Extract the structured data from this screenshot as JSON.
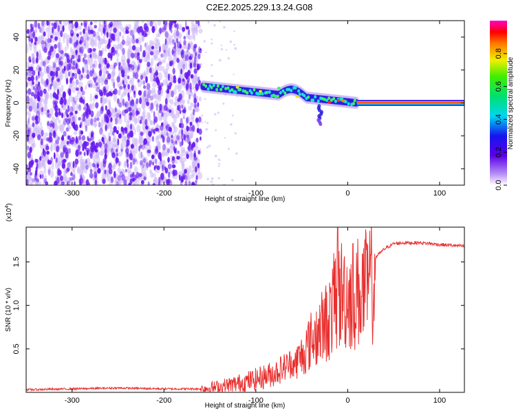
{
  "title": "C2E2.2025.229.13.24.G08",
  "colors": {
    "snr_line": "#e8302f",
    "noise_dots": "#6a1cf0",
    "noise_light": "#cdb8f7"
  },
  "chart_data": [
    {
      "type": "heatmap",
      "xlabel": "Height of straight line (km)",
      "ylabel": "Frequency (Hz)",
      "xlim": [
        -350,
        127
      ],
      "ylim": [
        -50,
        50
      ],
      "x_ticks": [
        -300,
        -200,
        -100,
        0,
        100
      ],
      "x_tick_labels": [
        "-300",
        "-200",
        "-100",
        "0",
        "100"
      ],
      "y_ticks": [
        -40,
        -20,
        0,
        20,
        40
      ],
      "y_tick_labels": [
        "-40",
        "-20",
        "0",
        "20",
        "40"
      ],
      "colorbar": {
        "label": "Normalized spectral amplitude",
        "range": [
          0,
          1
        ],
        "ticks": [
          0.0,
          0.2,
          0.4,
          0.6,
          0.8
        ],
        "tick_labels": [
          "0.0",
          "0.2",
          "0.4",
          "0.6",
          "0.8"
        ],
        "colormap": "rainbow (white, purple, blue, cyan, green, yellow, orange, red, magenta)"
      },
      "features": {
        "noise_region_x": [
          -350,
          -160
        ],
        "signal_band_x": [
          -160,
          127
        ],
        "carrier_frequency_hz": 0,
        "carrier_x": [
          10,
          127
        ]
      },
      "grid": false
    },
    {
      "type": "line",
      "xlabel": "Height of straight line (km)",
      "ylabel": "SNR (10 * v/v)",
      "y_multiplier_label": "(x10",
      "y_multiplier_exp": "4",
      "y_multiplier_close": ")",
      "xlim": [
        -350,
        127
      ],
      "ylim": [
        0.0,
        1.9
      ],
      "x_ticks": [
        -300,
        -200,
        -100,
        0,
        100
      ],
      "x_tick_labels": [
        "-300",
        "-200",
        "-100",
        "0",
        "100"
      ],
      "y_ticks": [
        0.5,
        1.0,
        1.5
      ],
      "y_tick_labels": [
        "0.5",
        "1.0",
        "1.5"
      ],
      "series": [
        {
          "color": "#e8302f",
          "x": [
            -350,
            -300,
            -250,
            -200,
            -160,
            -140,
            -120,
            -100,
            -80,
            -60,
            -50,
            -40,
            -30,
            -20,
            -15,
            -10,
            -5,
            0,
            10,
            20,
            30,
            40,
            50,
            60,
            80,
            100,
            127
          ],
          "y": [
            0.03,
            0.04,
            0.05,
            0.04,
            0.04,
            0.06,
            0.1,
            0.15,
            0.22,
            0.35,
            0.5,
            0.7,
            0.85,
            1.0,
            1.2,
            1.3,
            1.35,
            1.3,
            1.35,
            1.4,
            1.55,
            1.65,
            1.71,
            1.72,
            1.72,
            1.7,
            1.68
          ]
        }
      ],
      "grid": false
    }
  ]
}
